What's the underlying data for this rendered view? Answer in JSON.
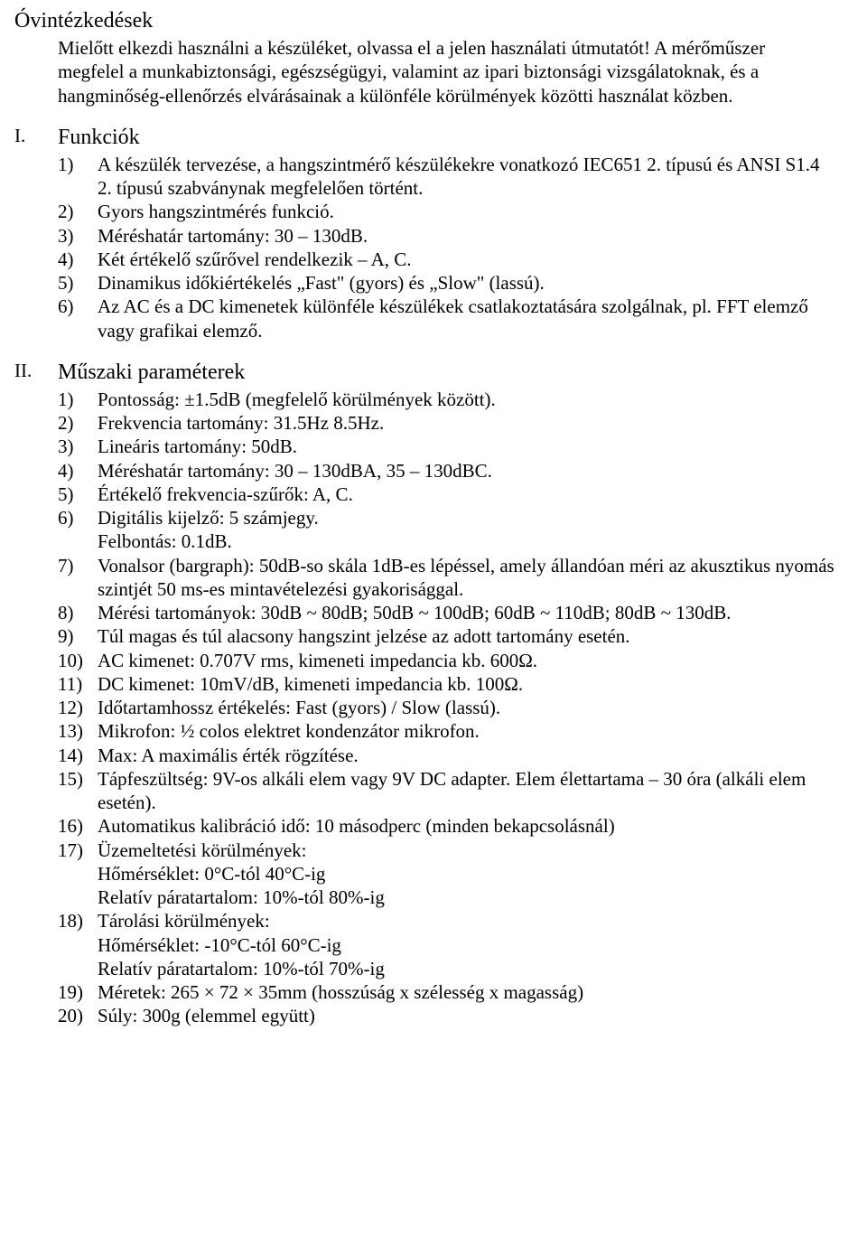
{
  "title": "Óvintézkedések",
  "intro": "Mielőtt elkezdi használni a készüléket, olvassa el a jelen használati útmutatót! A mérőműszer megfelel a munkabiztonsági, egészségügyi, valamint az ipari biztonsági vizsgálatoknak, és a hangminőség-ellenőrzés elvárásainak a különféle körülmények közötti használat közben.",
  "section1": {
    "num": "I.",
    "heading": "Funkciók",
    "items": {
      "m1": "1)",
      "t1": "A készülék tervezése, a hangszintmérő készülékekre vonatkozó IEC651 2. típusú és ANSI S1.4 2. típusú szabványnak megfelelően történt.",
      "m2": "2)",
      "t2": "Gyors hangszintmérés funkció.",
      "m3": "3)",
      "t3": "Méréshatár tartomány: 30 – 130dB.",
      "m4": "4)",
      "t4": "Két értékelő szűrővel rendelkezik – A, C.",
      "m5": "5)",
      "t5": "Dinamikus időkiértékelés „Fast\" (gyors) és „Slow\" (lassú).",
      "m6": "6)",
      "t6": "Az AC és a DC kimenetek különféle készülékek csatlakoztatására szolgálnak, pl. FFT elemző vagy grafikai elemző."
    }
  },
  "section2": {
    "num": "II.",
    "heading": "Műszaki paraméterek",
    "items": {
      "m1": "1)",
      "t1": "Pontosság: ±1.5dB (megfelelő körülmények között).",
      "m2": "2)",
      "t2": "Frekvencia tartomány: 31.5Hz 8.5Hz.",
      "m3": "3)",
      "t3": "Lineáris tartomány: 50dB.",
      "m4": "4)",
      "t4": "Méréshatár tartomány: 30 – 130dBA, 35 – 130dBC.",
      "m5": "5)",
      "t5": "Értékelő frekvencia-szűrők: A, C.",
      "m6": "6)",
      "t6": "Digitális kijelző: 5 számjegy.",
      "m6b": "",
      "t6b": "Felbontás: 0.1dB.",
      "m7": "7)",
      "t7": "Vonalsor (bargraph): 50dB-so skála 1dB-es lépéssel, amely állandóan méri az akusztikus nyomás szintjét 50 ms-es mintavételezési gyakorisággal.",
      "m8": "8)",
      "t8": " Mérési tartományok: 30dB ~ 80dB; 50dB ~ 100dB; 60dB ~ 110dB; 80dB ~ 130dB.",
      "m9": "9)",
      "t9": " Túl magas és túl alacsony hangszint jelzése az adott tartomány esetén.",
      "m10": "10)",
      "t10": " AC kimenet: 0.707V rms, kimeneti impedancia kb. 600Ω.",
      "m11": "11)",
      "t11": " DC kimenet: 10mV/dB, kimeneti impedancia kb. 100Ω.",
      "m12": "12)",
      "t12": "Időtartamhossz értékelés: Fast (gyors) / Slow (lassú).",
      "m13": "13)",
      "t13": "Mikrofon: ½ colos elektret kondenzátor mikrofon.",
      "m14": "14)",
      "t14": "Max:  A maximális érték rögzítése.",
      "m15": "15)",
      "t15": "Tápfeszültség: 9V-os alkáli elem vagy 9V DC adapter. Elem élettartama – 30 óra (alkáli elem esetén).",
      "m16": "16)",
      "t16": "Automatikus kalibráció idő: 10 másodperc (minden bekapcsolásnál)",
      "m17": "17)",
      "t17": "Üzemeltetési körülmények:",
      "t17a": "Hőmérséklet: 0°C-tól 40°C-ig",
      "t17b": "Relatív páratartalom: 10%-tól 80%-ig",
      "m18": "18)",
      "t18": "Tárolási körülmények:",
      "t18a": "Hőmérséklet: -10°C-tól 60°C-ig",
      "t18b": "Relatív páratartalom: 10%-tól 70%-ig",
      "m19": "19)",
      "t19": "Méretek: 265 × 72 × 35mm (hosszúság x szélesség x magasság)",
      "m20": "20)",
      "t20": "Súly: 300g (elemmel együtt)"
    }
  }
}
